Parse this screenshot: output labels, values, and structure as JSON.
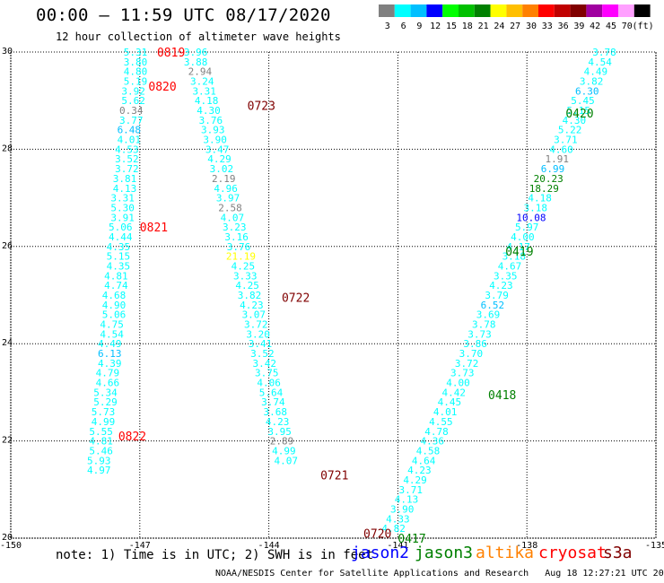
{
  "header": {
    "title": "00:00 – 11:59 UTC 08/17/2020",
    "subtitle": "12 hour collection of altimeter wave heights"
  },
  "color_scale": {
    "labels": [
      "3",
      "6",
      "9",
      "12",
      "15",
      "18",
      "21",
      "24",
      "27",
      "30",
      "33",
      "36",
      "39",
      "42",
      "45",
      "70",
      "(ft)"
    ],
    "colors": [
      "#808080",
      "#00ffff",
      "#00bfff",
      "#0000ff",
      "#00ff00",
      "#00c000",
      "#008000",
      "#ffff00",
      "#ffbf00",
      "#ff8000",
      "#ff0000",
      "#c00000",
      "#800000",
      "#a000a0",
      "#ff00ff",
      "#ffa0ff",
      "#000000"
    ]
  },
  "axes": {
    "x_ticks": [
      "-150",
      "-147",
      "-144",
      "-141",
      "-138",
      "-135"
    ],
    "y_ticks": [
      "30",
      "28",
      "26",
      "24",
      "22",
      "20"
    ],
    "xlim": [
      -150,
      -135
    ],
    "ylim": [
      20,
      30
    ]
  },
  "legend": {
    "note": "note: 1) Time is in UTC; 2) SWH is in feet",
    "satellites": [
      {
        "name": "jason2",
        "color": "#0000ff"
      },
      {
        "name": "jason3",
        "color": "#008000"
      },
      {
        "name": "altika",
        "color": "#ff8000"
      },
      {
        "name": "cryosat",
        "color": "#ff0000"
      },
      {
        "name": "s3a",
        "color": "#800000"
      }
    ]
  },
  "footer": {
    "credit": "NOAA/NESDIS Center for Satellite Applications and Research",
    "timestamp": "Aug 18 12:27:21 UTC 2020"
  },
  "chart_data": {
    "type": "scatter",
    "tracks": [
      {
        "satellite": "cryosat",
        "points": [
          {
            "lon": -147.1,
            "lat": 30.0,
            "swh": "5.31"
          },
          {
            "lon": -147.1,
            "lat": 29.8,
            "swh": "3.80"
          },
          {
            "lon": -147.1,
            "lat": 29.6,
            "swh": "4.80"
          },
          {
            "lon": -147.1,
            "lat": 29.4,
            "swh": "5.19"
          },
          {
            "lon": -147.15,
            "lat": 29.2,
            "swh": "3.92"
          },
          {
            "lon": -147.15,
            "lat": 29.0,
            "swh": "5.62"
          },
          {
            "lon": -147.2,
            "lat": 28.8,
            "swh": "0.34"
          },
          {
            "lon": -147.2,
            "lat": 28.6,
            "swh": "3.77"
          },
          {
            "lon": -147.25,
            "lat": 28.4,
            "swh": "6.48"
          },
          {
            "lon": -147.25,
            "lat": 28.2,
            "swh": "4.01"
          },
          {
            "lon": -147.3,
            "lat": 28.0,
            "swh": "4.53"
          },
          {
            "lon": -147.3,
            "lat": 27.8,
            "swh": "3.52"
          },
          {
            "lon": -147.3,
            "lat": 27.6,
            "swh": "3.72"
          },
          {
            "lon": -147.35,
            "lat": 27.4,
            "swh": "3.81"
          },
          {
            "lon": -147.35,
            "lat": 27.2,
            "swh": "4.13"
          },
          {
            "lon": -147.4,
            "lat": 27.0,
            "swh": "3.31"
          },
          {
            "lon": -147.4,
            "lat": 26.8,
            "swh": "5.30"
          },
          {
            "lon": -147.4,
            "lat": 26.6,
            "swh": "3.91"
          },
          {
            "lon": -147.45,
            "lat": 26.4,
            "swh": "5.06"
          },
          {
            "lon": -147.45,
            "lat": 26.2,
            "swh": "4.44"
          },
          {
            "lon": -147.5,
            "lat": 26.0,
            "swh": "4.35"
          },
          {
            "lon": -147.5,
            "lat": 25.8,
            "swh": "5.15"
          },
          {
            "lon": -147.5,
            "lat": 25.6,
            "swh": "4.35"
          },
          {
            "lon": -147.55,
            "lat": 25.4,
            "swh": "4.81"
          },
          {
            "lon": -147.55,
            "lat": 25.2,
            "swh": "4.74"
          },
          {
            "lon": -147.6,
            "lat": 25.0,
            "swh": "4.68"
          },
          {
            "lon": -147.6,
            "lat": 24.8,
            "swh": "4.90"
          },
          {
            "lon": -147.6,
            "lat": 24.6,
            "swh": "5.06"
          },
          {
            "lon": -147.65,
            "lat": 24.4,
            "swh": "4.75"
          },
          {
            "lon": -147.65,
            "lat": 24.2,
            "swh": "4.54"
          },
          {
            "lon": -147.7,
            "lat": 24.0,
            "swh": "4.49"
          },
          {
            "lon": -147.7,
            "lat": 23.8,
            "swh": "6.13"
          },
          {
            "lon": -147.7,
            "lat": 23.6,
            "swh": "4.39"
          },
          {
            "lon": -147.75,
            "lat": 23.4,
            "swh": "4.79"
          },
          {
            "lon": -147.75,
            "lat": 23.2,
            "swh": "4.66"
          },
          {
            "lon": -147.8,
            "lat": 23.0,
            "swh": "5.34"
          },
          {
            "lon": -147.8,
            "lat": 22.8,
            "swh": "5.29"
          },
          {
            "lon": -147.85,
            "lat": 22.6,
            "swh": "5.73"
          },
          {
            "lon": -147.85,
            "lat": 22.4,
            "swh": "4.99"
          },
          {
            "lon": -147.9,
            "lat": 22.2,
            "swh": "5.55"
          },
          {
            "lon": -147.9,
            "lat": 22.0,
            "swh": "4.81"
          },
          {
            "lon": -147.9,
            "lat": 21.8,
            "swh": "5.46"
          },
          {
            "lon": -147.95,
            "lat": 21.6,
            "swh": "5.93"
          },
          {
            "lon": -147.95,
            "lat": 21.4,
            "swh": "4.97"
          }
        ]
      },
      {
        "satellite": "cryosat",
        "points": [
          {
            "lon": -145.7,
            "lat": 30.0,
            "swh": "3.96"
          },
          {
            "lon": -145.7,
            "lat": 29.8,
            "swh": "3.88"
          },
          {
            "lon": -145.6,
            "lat": 29.6,
            "swh": "2.94"
          },
          {
            "lon": -145.55,
            "lat": 29.4,
            "swh": "3.24"
          },
          {
            "lon": -145.5,
            "lat": 29.2,
            "swh": "3.31"
          },
          {
            "lon": -145.45,
            "lat": 29.0,
            "swh": "4.18"
          },
          {
            "lon": -145.4,
            "lat": 28.8,
            "swh": "4.30"
          },
          {
            "lon": -145.35,
            "lat": 28.6,
            "swh": "3.76"
          },
          {
            "lon": -145.3,
            "lat": 28.4,
            "swh": "3.93"
          },
          {
            "lon": -145.25,
            "lat": 28.2,
            "swh": "3.90"
          },
          {
            "lon": -145.2,
            "lat": 28.0,
            "swh": "3.47"
          },
          {
            "lon": -145.15,
            "lat": 27.8,
            "swh": "4.29"
          },
          {
            "lon": -145.1,
            "lat": 27.6,
            "swh": "3.02"
          },
          {
            "lon": -145.05,
            "lat": 27.4,
            "swh": "2.19"
          },
          {
            "lon": -145.0,
            "lat": 27.2,
            "swh": "4.96"
          },
          {
            "lon": -144.95,
            "lat": 27.0,
            "swh": "3.97"
          },
          {
            "lon": -144.9,
            "lat": 26.8,
            "swh": "2.58"
          },
          {
            "lon": -144.85,
            "lat": 26.6,
            "swh": "4.07"
          },
          {
            "lon": -144.8,
            "lat": 26.4,
            "swh": "3.23"
          },
          {
            "lon": -144.75,
            "lat": 26.2,
            "swh": "3.16"
          },
          {
            "lon": -144.7,
            "lat": 26.0,
            "swh": "3.76"
          },
          {
            "lon": -144.65,
            "lat": 25.8,
            "swh": "21.19"
          },
          {
            "lon": -144.6,
            "lat": 25.6,
            "swh": "4.25"
          },
          {
            "lon": -144.55,
            "lat": 25.4,
            "swh": "3.33"
          },
          {
            "lon": -144.5,
            "lat": 25.2,
            "swh": "4.25"
          },
          {
            "lon": -144.45,
            "lat": 25.0,
            "swh": "3.82"
          },
          {
            "lon": -144.4,
            "lat": 24.8,
            "swh": "4.23"
          },
          {
            "lon": -144.35,
            "lat": 24.6,
            "swh": "3.07"
          },
          {
            "lon": -144.3,
            "lat": 24.4,
            "swh": "3.72"
          },
          {
            "lon": -144.25,
            "lat": 24.2,
            "swh": "3.20"
          },
          {
            "lon": -144.2,
            "lat": 24.0,
            "swh": "3.41"
          },
          {
            "lon": -144.15,
            "lat": 23.8,
            "swh": "3.52"
          },
          {
            "lon": -144.1,
            "lat": 23.6,
            "swh": "3.42"
          },
          {
            "lon": -144.05,
            "lat": 23.4,
            "swh": "3.75"
          },
          {
            "lon": -144.0,
            "lat": 23.2,
            "swh": "4.06"
          },
          {
            "lon": -143.95,
            "lat": 23.0,
            "swh": "5.64"
          },
          {
            "lon": -143.9,
            "lat": 22.8,
            "swh": "3.74"
          },
          {
            "lon": -143.85,
            "lat": 22.6,
            "swh": "3.68"
          },
          {
            "lon": -143.8,
            "lat": 22.4,
            "swh": "4.23"
          },
          {
            "lon": -143.75,
            "lat": 22.2,
            "swh": "3.95"
          },
          {
            "lon": -143.7,
            "lat": 22.0,
            "swh": "2.89"
          },
          {
            "lon": -143.65,
            "lat": 21.8,
            "swh": "4.99"
          },
          {
            "lon": -143.6,
            "lat": 21.6,
            "swh": "4.07"
          }
        ]
      },
      {
        "satellite": "jason3",
        "points": [
          {
            "lon": -136.2,
            "lat": 30.0,
            "swh": "3.78"
          },
          {
            "lon": -136.3,
            "lat": 29.8,
            "swh": "4.54"
          },
          {
            "lon": -136.4,
            "lat": 29.6,
            "swh": "4.49"
          },
          {
            "lon": -136.5,
            "lat": 29.4,
            "swh": "3.82"
          },
          {
            "lon": -136.6,
            "lat": 29.2,
            "swh": "6.30"
          },
          {
            "lon": -136.7,
            "lat": 29.0,
            "swh": "5.45"
          },
          {
            "lon": -136.8,
            "lat": 28.8,
            "swh": "5.15"
          },
          {
            "lon": -136.9,
            "lat": 28.6,
            "swh": "4.30"
          },
          {
            "lon": -137.0,
            "lat": 28.4,
            "swh": "5.22"
          },
          {
            "lon": -137.1,
            "lat": 28.2,
            "swh": "3.71"
          },
          {
            "lon": -137.2,
            "lat": 28.0,
            "swh": "4.60"
          },
          {
            "lon": -137.3,
            "lat": 27.8,
            "swh": "1.91"
          },
          {
            "lon": -137.4,
            "lat": 27.6,
            "swh": "6.99"
          },
          {
            "lon": -137.5,
            "lat": 27.4,
            "swh": "20.23"
          },
          {
            "lon": -137.6,
            "lat": 27.2,
            "swh": "18.29"
          },
          {
            "lon": -137.7,
            "lat": 27.0,
            "swh": "4.18"
          },
          {
            "lon": -137.8,
            "lat": 26.8,
            "swh": "3.18"
          },
          {
            "lon": -137.9,
            "lat": 26.6,
            "swh": "10.08"
          },
          {
            "lon": -138.0,
            "lat": 26.4,
            "swh": "5.97"
          },
          {
            "lon": -138.1,
            "lat": 26.2,
            "swh": "4.00"
          },
          {
            "lon": -138.2,
            "lat": 26.0,
            "swh": "4.17"
          },
          {
            "lon": -138.3,
            "lat": 25.8,
            "swh": "3.18"
          },
          {
            "lon": -138.4,
            "lat": 25.6,
            "swh": "4.67"
          },
          {
            "lon": -138.5,
            "lat": 25.4,
            "swh": "3.35"
          },
          {
            "lon": -138.6,
            "lat": 25.2,
            "swh": "4.23"
          },
          {
            "lon": -138.7,
            "lat": 25.0,
            "swh": "3.79"
          },
          {
            "lon": -138.8,
            "lat": 24.8,
            "swh": "6.52"
          },
          {
            "lon": -138.9,
            "lat": 24.6,
            "swh": "3.69"
          },
          {
            "lon": -139.0,
            "lat": 24.4,
            "swh": "3.78"
          },
          {
            "lon": -139.1,
            "lat": 24.2,
            "swh": "3.73"
          },
          {
            "lon": -139.2,
            "lat": 24.0,
            "swh": "3.86"
          },
          {
            "lon": -139.3,
            "lat": 23.8,
            "swh": "3.70"
          },
          {
            "lon": -139.4,
            "lat": 23.6,
            "swh": "3.72"
          },
          {
            "lon": -139.5,
            "lat": 23.4,
            "swh": "3.73"
          },
          {
            "lon": -139.6,
            "lat": 23.2,
            "swh": "4.00"
          },
          {
            "lon": -139.7,
            "lat": 23.0,
            "swh": "4.42"
          },
          {
            "lon": -139.8,
            "lat": 22.8,
            "swh": "4.45"
          },
          {
            "lon": -139.9,
            "lat": 22.6,
            "swh": "4.01"
          },
          {
            "lon": -140.0,
            "lat": 22.4,
            "swh": "4.55"
          },
          {
            "lon": -140.1,
            "lat": 22.2,
            "swh": "4.78"
          },
          {
            "lon": -140.2,
            "lat": 22.0,
            "swh": "4.36"
          },
          {
            "lon": -140.3,
            "lat": 21.8,
            "swh": "4.58"
          },
          {
            "lon": -140.4,
            "lat": 21.6,
            "swh": "4.64"
          },
          {
            "lon": -140.5,
            "lat": 21.4,
            "swh": "4.23"
          },
          {
            "lon": -140.6,
            "lat": 21.2,
            "swh": "4.29"
          },
          {
            "lon": -140.7,
            "lat": 21.0,
            "swh": "3.71"
          },
          {
            "lon": -140.8,
            "lat": 20.8,
            "swh": "4.13"
          },
          {
            "lon": -140.9,
            "lat": 20.6,
            "swh": "3.90"
          },
          {
            "lon": -141.0,
            "lat": 20.4,
            "swh": "4.33"
          },
          {
            "lon": -141.1,
            "lat": 20.2,
            "swh": "4.82"
          }
        ]
      }
    ],
    "time_labels": [
      {
        "text": "0819",
        "satellite": "cryosat",
        "lon": -146.6,
        "lat": 30.0
      },
      {
        "text": "0820",
        "satellite": "cryosat",
        "lon": -146.8,
        "lat": 29.3
      },
      {
        "text": "0821",
        "satellite": "cryosat",
        "lon": -147.0,
        "lat": 26.4
      },
      {
        "text": "0822",
        "satellite": "cryosat",
        "lon": -147.5,
        "lat": 22.1
      },
      {
        "text": "0723",
        "satellite": "s3a",
        "lon": -144.5,
        "lat": 28.9
      },
      {
        "text": "0722",
        "satellite": "s3a",
        "lon": -143.7,
        "lat": 24.95
      },
      {
        "text": "0721",
        "satellite": "s3a",
        "lon": -142.8,
        "lat": 21.3
      },
      {
        "text": "0720",
        "satellite": "s3a",
        "lon": -141.8,
        "lat": 20.1
      },
      {
        "text": "0417",
        "satellite": "jason3",
        "lon": -141.0,
        "lat": 20.0
      },
      {
        "text": "0418",
        "satellite": "jason3",
        "lon": -138.9,
        "lat": 22.95
      },
      {
        "text": "0419",
        "satellite": "jason3",
        "lon": -138.5,
        "lat": 25.9
      },
      {
        "text": "0420",
        "satellite": "jason3",
        "lon": -137.1,
        "lat": 28.75
      }
    ]
  }
}
